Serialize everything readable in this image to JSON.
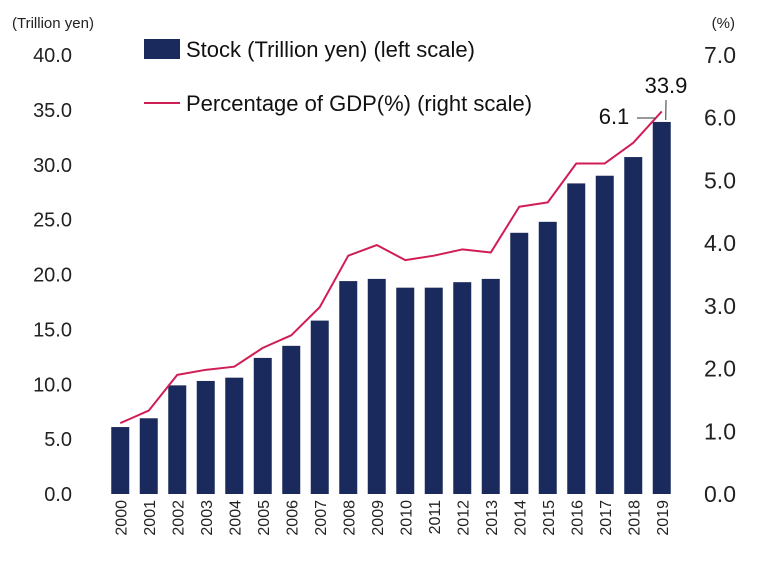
{
  "chart_data": {
    "type": "bar",
    "title": "",
    "categories": [
      "2000",
      "2001",
      "2002",
      "2003",
      "2004",
      "2005",
      "2006",
      "2007",
      "2008",
      "2009",
      "2010",
      "2011",
      "2012",
      "2013",
      "2014",
      "2015",
      "2016",
      "2017",
      "2018",
      "2019"
    ],
    "series": [
      {
        "name": "Stock (Trillion yen) (left scale)",
        "type": "bar",
        "axis": "left",
        "color": "#1b2a5c",
        "values": [
          6.1,
          6.9,
          9.9,
          10.3,
          10.6,
          12.4,
          13.5,
          15.8,
          19.4,
          19.6,
          18.8,
          18.8,
          19.3,
          19.6,
          23.8,
          24.8,
          28.3,
          29.0,
          30.7,
          33.9
        ]
      },
      {
        "name": "Percentage of GDP(%) (right scale)",
        "type": "line",
        "axis": "right",
        "color": "#d11d55",
        "values": [
          1.13,
          1.33,
          1.9,
          1.98,
          2.03,
          2.33,
          2.53,
          2.98,
          3.8,
          3.97,
          3.73,
          3.8,
          3.9,
          3.85,
          4.58,
          4.65,
          5.27,
          5.27,
          5.6,
          6.1
        ]
      }
    ],
    "left_axis": {
      "label": "(Trillion yen)",
      "ylim": [
        0,
        40
      ],
      "ticks": [
        "0.0",
        "5.0",
        "10.0",
        "15.0",
        "20.0",
        "25.0",
        "30.0",
        "35.0",
        "40.0"
      ]
    },
    "right_axis": {
      "label": "(%)",
      "ylim": [
        0,
        7
      ],
      "ticks": [
        "0.0",
        "1.0",
        "2.0",
        "3.0",
        "4.0",
        "5.0",
        "6.0",
        "7.0"
      ]
    },
    "annotations": [
      {
        "text": "33.9",
        "target": "Stock (Trillion yen) (left scale)",
        "category": "2019"
      },
      {
        "text": "6.1",
        "target": "Percentage of GDP(%) (right scale)",
        "category": "2019"
      }
    ],
    "grid": false,
    "legend_position": "top"
  }
}
